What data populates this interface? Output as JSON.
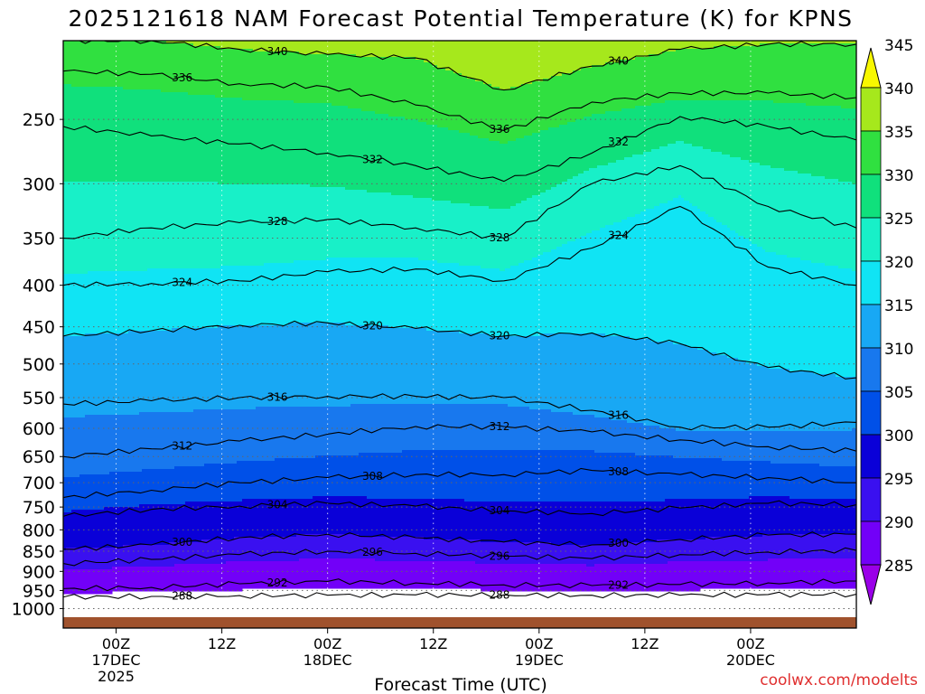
{
  "chart_data": {
    "type": "heatmap",
    "title": "2025121618 NAM Forecast Potential Temperature (K) for KPNS",
    "xlabel": "Forecast Time (UTC)",
    "ylabel": "",
    "credit": "coolwx.com/modelts",
    "x_range_hours": [
      -6,
      84
    ],
    "x_ticks": [
      {
        "hour": 0,
        "lines": [
          "00Z",
          "17DEC",
          "2025"
        ]
      },
      {
        "hour": 12,
        "lines": [
          "12Z"
        ]
      },
      {
        "hour": 24,
        "lines": [
          "00Z",
          "18DEC"
        ]
      },
      {
        "hour": 36,
        "lines": [
          "12Z"
        ]
      },
      {
        "hour": 48,
        "lines": [
          "00Z",
          "19DEC"
        ]
      },
      {
        "hour": 60,
        "lines": [
          "12Z"
        ]
      },
      {
        "hour": 72,
        "lines": [
          "00Z",
          "20DEC"
        ]
      }
    ],
    "y_axis": "pressure (hPa), log scale, decreasing upward",
    "y_range": [
      1030,
      200
    ],
    "y_ticks": [
      250,
      300,
      350,
      400,
      450,
      500,
      550,
      600,
      650,
      700,
      750,
      800,
      850,
      900,
      950,
      1000
    ],
    "colorbar": {
      "min": 280,
      "max": 350,
      "step": 5,
      "labels": [
        285,
        290,
        295,
        300,
        305,
        310,
        315,
        320,
        325,
        330,
        335,
        340,
        345
      ],
      "colors": [
        "#9a00e8",
        "#7200f8",
        "#3a10f0",
        "#0a00d8",
        "#0050e8",
        "#1878ee",
        "#18a8f4",
        "#10e4f4",
        "#18f0c8",
        "#10e07c",
        "#30e040",
        "#a6e81c",
        "#f8f800"
      ]
    },
    "ground_color": "#a0522d",
    "contour_interval": 4,
    "contour_labels": [
      288,
      292,
      296,
      300,
      304,
      308,
      312,
      316,
      320,
      324,
      328,
      332,
      336,
      340
    ],
    "isentropes": [
      {
        "theta": 288,
        "pressure": [
          968,
          966,
          964,
          963,
          962,
          962,
          963,
          963,
          961,
          960
        ]
      },
      {
        "theta": 292,
        "pressure": [
          945,
          942,
          932,
          926,
          930,
          935,
          937,
          934,
          930,
          925
        ]
      },
      {
        "theta": 296,
        "pressure": [
          880,
          870,
          858,
          850,
          855,
          862,
          868,
          858,
          852,
          848
        ]
      },
      {
        "theta": 300,
        "pressure": [
          845,
          835,
          818,
          810,
          818,
          828,
          835,
          822,
          812,
          810
        ]
      },
      {
        "theta": 304,
        "pressure": [
          770,
          755,
          748,
          742,
          748,
          758,
          764,
          752,
          742,
          745
        ]
      },
      {
        "theta": 308,
        "pressure": [
          730,
          715,
          700,
          690,
          684,
          684,
          676,
          684,
          690,
          700
        ]
      },
      {
        "theta": 312,
        "pressure": [
          650,
          636,
          622,
          610,
          597,
          597,
          606,
          620,
          632,
          640
        ]
      },
      {
        "theta": 316,
        "pressure": [
          560,
          555,
          550,
          548,
          548,
          550,
          570,
          598,
          598,
          590
        ]
      },
      {
        "theta": 320,
        "pressure": [
          462,
          455,
          448,
          445,
          452,
          462,
          458,
          472,
          505,
          520
        ]
      },
      {
        "theta": 324,
        "pressure": [
          400,
          398,
          395,
          385,
          382,
          395,
          360,
          320,
          380,
          400
        ]
      },
      {
        "theta": 328,
        "pressure": [
          350,
          340,
          335,
          332,
          340,
          350,
          300,
          285,
          320,
          340
        ]
      },
      {
        "theta": 332,
        "pressure": [
          255,
          262,
          268,
          275,
          285,
          298,
          275,
          248,
          255,
          265
        ]
      },
      {
        "theta": 336,
        "pressure": [
          218,
          220,
          226,
          228,
          240,
          258,
          238,
          232,
          232,
          235
        ]
      },
      {
        "theta": 340,
        "pressure": [
          200,
          200,
          205,
          208,
          210,
          230,
          215,
          205,
          202,
          202
        ]
      }
    ]
  }
}
